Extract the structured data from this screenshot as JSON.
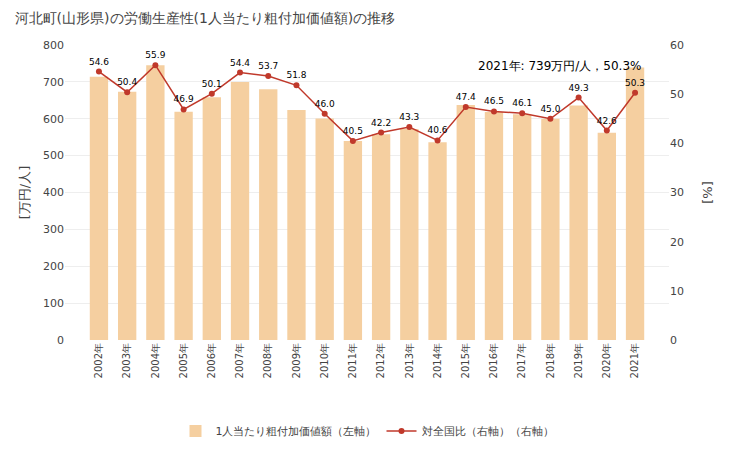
{
  "chart_data": {
    "type": "bar",
    "title": "河北町(山形県)の労働生産性(1人当たり粗付加価値額)の推移",
    "categories": [
      "2002年",
      "2003年",
      "2004年",
      "2005年",
      "2006年",
      "2007年",
      "2008年",
      "2009年",
      "2010年",
      "2011年",
      "2012年",
      "2013年",
      "2014年",
      "2015年",
      "2016年",
      "2017年",
      "2018年",
      "2019年",
      "2020年",
      "2021年"
    ],
    "series": [
      {
        "name": "1人当たり粗付加価値額（左軸）",
        "type": "bar",
        "color": "#f5cfa0",
        "values": [
          714,
          673,
          745,
          619,
          658,
          700,
          680,
          624,
          601,
          540,
          558,
          572,
          536,
          637,
          618,
          612,
          600,
          636,
          562,
          739
        ]
      },
      {
        "name": "対全国比（右軸）（右軸）",
        "type": "line",
        "axis": "y2",
        "color": "#c0392b",
        "marker": "circle",
        "data_labels": true,
        "values": [
          54.6,
          50.4,
          55.9,
          46.9,
          50.1,
          54.4,
          53.7,
          51.8,
          46.0,
          40.5,
          42.2,
          43.3,
          40.6,
          47.4,
          46.5,
          46.1,
          45.0,
          49.3,
          42.6,
          50.3
        ],
        "value_labels": [
          "54.6",
          "50.4",
          "55.9",
          "46.9",
          "50.1",
          "54.4",
          "53.7",
          "51.8",
          "46.0",
          "40.5",
          "42.2",
          "43.3",
          "40.6",
          "47.4",
          "46.5",
          "46.1",
          "45.0",
          "49.3",
          "42.6",
          "50.3"
        ]
      }
    ],
    "ylabel": "[万円/人]",
    "y2label": "[%]",
    "ylim": [
      0,
      800
    ],
    "yticks": [
      0,
      100,
      200,
      300,
      400,
      500,
      600,
      700,
      800
    ],
    "y2lim": [
      0,
      60
    ],
    "y2ticks": [
      0,
      10,
      20,
      30,
      40,
      50,
      60
    ],
    "annotation": "2021年: 739万円/人，50.3%",
    "grid": true,
    "legend": "bottom"
  }
}
